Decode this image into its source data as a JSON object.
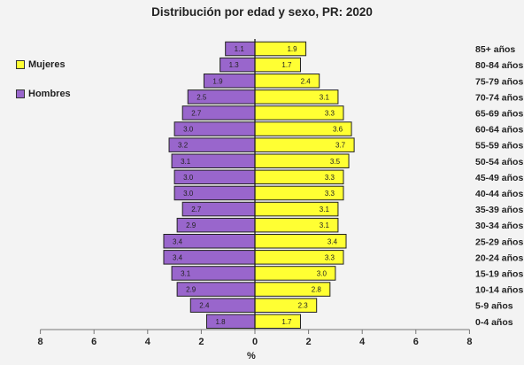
{
  "chart_data": {
    "type": "bar",
    "orientation": "horizontal-population-pyramid",
    "title": "Distribución por edad y sexo, PR: 2020",
    "xlabel": "%",
    "ylabel": "",
    "xlim": [
      -8,
      8
    ],
    "x_ticks": [
      "8",
      "6",
      "4",
      "2",
      "0",
      "2",
      "4",
      "6",
      "8"
    ],
    "categories": [
      "0-4 años",
      "5-9 años",
      "10-14 años",
      "15-19 años",
      "20-24 años",
      "25-29 años",
      "30-34 años",
      "35-39 años",
      "40-44 años",
      "45-49 años",
      "50-54 años",
      "55-59 años",
      "60-64 años",
      "65-69 años",
      "70-74 años",
      "75-79 años",
      "80-84 años",
      "85+ años"
    ],
    "series": [
      {
        "name": "Hombres",
        "color": "#9966cc",
        "side": "left",
        "values": [
          1.8,
          2.4,
          2.9,
          3.1,
          3.4,
          3.4,
          2.9,
          2.7,
          3.0,
          3.0,
          3.1,
          3.2,
          3.0,
          2.7,
          2.5,
          1.9,
          1.3,
          1.1
        ],
        "labels": [
          "1.8",
          "2.4",
          "2.9",
          "3.1",
          "3.4",
          "3.4",
          "2.9",
          "2.7",
          "3.0",
          "3.0",
          "3.1",
          "3.2",
          "3.0",
          "2.7",
          "2.5",
          "1.9",
          "1.3",
          "1.1"
        ]
      },
      {
        "name": "Mujeres",
        "color": "#ffff33",
        "side": "right",
        "values": [
          1.7,
          2.3,
          2.8,
          3.0,
          3.3,
          3.4,
          3.1,
          3.1,
          3.3,
          3.3,
          3.5,
          3.7,
          3.6,
          3.3,
          3.1,
          2.4,
          1.7,
          1.9
        ],
        "labels": [
          "1.7",
          "2.3",
          "2.8",
          "3.0",
          "3.3",
          "3.4",
          "3.1",
          "3.1",
          "3.3",
          "3.3",
          "3.5",
          "3.7",
          "3.6",
          "3.3",
          "3.1",
          "2.4",
          "1.7",
          "1.9"
        ]
      }
    ],
    "legend": {
      "placement": "top-left",
      "entries": [
        "Mujeres",
        "Hombres"
      ]
    },
    "grid": false
  }
}
